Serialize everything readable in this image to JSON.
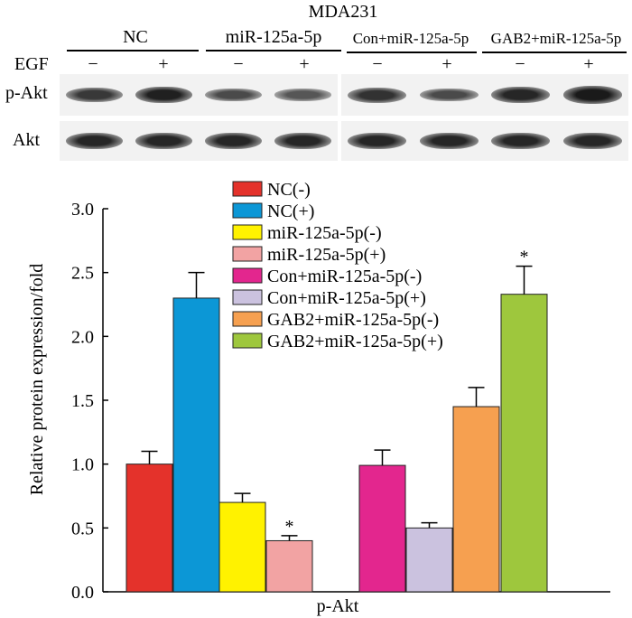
{
  "blot": {
    "cell_line": "MDA231",
    "groups": [
      "NC",
      "miR-125a-5p",
      "Con+miR-125a-5p",
      "GAB2+miR-125a-5p"
    ],
    "treatment_label": "EGF",
    "signs": [
      "−",
      "+",
      "−",
      "+",
      "−",
      "+",
      "−",
      "+"
    ],
    "rows": [
      {
        "label": "p-Akt",
        "intensity": [
          0.7,
          0.9,
          0.55,
          0.45,
          0.75,
          0.55,
          0.85,
          0.95
        ]
      },
      {
        "label": "Akt",
        "intensity": [
          0.85,
          0.85,
          0.85,
          0.85,
          0.85,
          0.85,
          0.85,
          0.85
        ]
      }
    ]
  },
  "chart_data": {
    "type": "bar",
    "title": "",
    "xlabel": "p-Akt",
    "ylabel": "Relative protein expression/fold",
    "ylim": [
      0.0,
      3.0
    ],
    "yticks": [
      "0.0",
      "0.5",
      "1.0",
      "1.5",
      "2.0",
      "2.5",
      "3.0"
    ],
    "series": [
      {
        "name": "NC(-)",
        "value": 1.0,
        "error": 0.1,
        "color": "#e4322b",
        "significant": false
      },
      {
        "name": "NC(+)",
        "value": 2.3,
        "error": 0.2,
        "color": "#0c97d6",
        "significant": false
      },
      {
        "name": "miR-125a-5p(-)",
        "value": 0.7,
        "error": 0.07,
        "color": "#fff200",
        "significant": false
      },
      {
        "name": "miR-125a-5p(+)",
        "value": 0.4,
        "error": 0.04,
        "color": "#f2a3a3",
        "significant": true
      },
      {
        "name": "Con+miR-125a-5p(-)",
        "value": 0.99,
        "error": 0.12,
        "color": "#e3268e",
        "significant": false
      },
      {
        "name": "Con+miR-125a-5p(+)",
        "value": 0.5,
        "error": 0.04,
        "color": "#cbc2df",
        "significant": false
      },
      {
        "name": "GAB2+miR-125a-5p(-)",
        "value": 1.45,
        "error": 0.15,
        "color": "#f6a050",
        "significant": false
      },
      {
        "name": "GAB2+miR-125a-5p(+)",
        "value": 2.33,
        "error": 0.22,
        "color": "#9ec73d",
        "significant": true
      }
    ],
    "significance_marker": "*",
    "legend_position": "top-center"
  }
}
